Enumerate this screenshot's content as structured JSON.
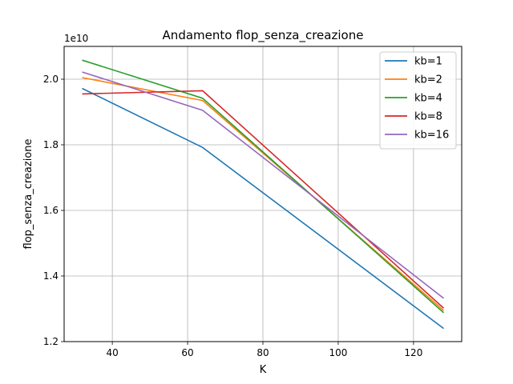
{
  "chart_data": {
    "type": "line",
    "title": "Andamento flop_senza_creazione",
    "xlabel": "K",
    "ylabel": "flop_senza_creazione",
    "y_offset_label": "1e10",
    "xlim": [
      27.2,
      132.8
    ],
    "ylim": [
      1.2,
      2.1
    ],
    "x_ticks": [
      40,
      60,
      80,
      100,
      120
    ],
    "x_tick_labels": [
      "40",
      "60",
      "80",
      "100",
      "120"
    ],
    "y_ticks": [
      1.2,
      1.4,
      1.6,
      1.8,
      2.0
    ],
    "y_tick_labels": [
      "1.2",
      "1.4",
      "1.6",
      "1.8",
      "2.0"
    ],
    "grid": true,
    "legend_position": "top-right",
    "x": [
      32,
      64,
      128
    ],
    "series": [
      {
        "name": "kb=1",
        "color": "#1f77b4",
        "values": [
          1.972,
          1.792,
          1.24
        ]
      },
      {
        "name": "kb=2",
        "color": "#ff7f0e",
        "values": [
          2.005,
          1.935,
          1.295
        ]
      },
      {
        "name": "kb=4",
        "color": "#2ca02c",
        "values": [
          2.058,
          1.942,
          1.288
        ]
      },
      {
        "name": "kb=8",
        "color": "#d62728",
        "values": [
          1.955,
          1.965,
          1.302
        ]
      },
      {
        "name": "kb=16",
        "color": "#9467bd",
        "values": [
          2.022,
          1.905,
          1.332
        ]
      }
    ]
  }
}
